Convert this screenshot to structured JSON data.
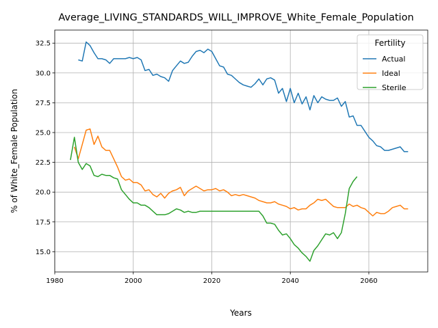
{
  "chart_data": {
    "type": "line",
    "title": "Average_LIVING_STANDARDS_WILL_IMPROVE_White_Female_Population",
    "xlabel": "Years",
    "ylabel": "% of White_Female Population",
    "xlim": [
      1980,
      2075
    ],
    "ylim": [
      13.3,
      33.6
    ],
    "xticks": [
      "1980",
      "2000",
      "2020",
      "2040",
      "2060"
    ],
    "yticks": [
      "15.0",
      "17.5",
      "20.0",
      "22.5",
      "25.0",
      "27.5",
      "30.0",
      "32.5"
    ],
    "grid": true,
    "legend": {
      "title": "Fertility",
      "position": "top-right"
    },
    "series": [
      {
        "name": "Actual",
        "color": "#1f77b4",
        "x": [
          1986,
          1987,
          1988,
          1989,
          1990,
          1991,
          1992,
          1993,
          1994,
          1995,
          1996,
          1997,
          1998,
          1999,
          2000,
          2001,
          2002,
          2003,
          2004,
          2005,
          2006,
          2007,
          2008,
          2009,
          2010,
          2011,
          2012,
          2013,
          2014,
          2015,
          2016,
          2017,
          2018,
          2019,
          2020,
          2021,
          2022,
          2023,
          2024,
          2025,
          2026,
          2027,
          2028,
          2029,
          2030,
          2031,
          2032,
          2033,
          2034,
          2035,
          2036,
          2037,
          2038,
          2039,
          2040,
          2041,
          2042,
          2043,
          2044,
          2045,
          2046,
          2047,
          2048,
          2049,
          2050,
          2051,
          2052,
          2053,
          2054,
          2055,
          2056,
          2057,
          2058,
          2059,
          2060,
          2061,
          2062,
          2063,
          2064,
          2065,
          2066,
          2067,
          2068,
          2069,
          2070
        ],
        "values": [
          31.1,
          31.0,
          32.6,
          32.3,
          31.7,
          31.2,
          31.2,
          31.1,
          30.8,
          31.2,
          31.2,
          31.2,
          31.2,
          31.3,
          31.2,
          31.3,
          31.1,
          30.2,
          30.3,
          29.8,
          29.9,
          29.7,
          29.6,
          29.3,
          30.2,
          30.6,
          31.0,
          30.8,
          30.9,
          31.4,
          31.8,
          31.9,
          31.7,
          32.0,
          31.8,
          31.2,
          30.6,
          30.5,
          29.9,
          29.8,
          29.5,
          29.2,
          29.0,
          28.9,
          28.8,
          29.1,
          29.5,
          29.0,
          29.5,
          29.6,
          29.4,
          28.3,
          28.7,
          27.6,
          28.7,
          27.5,
          28.3,
          27.4,
          28.0,
          26.9,
          28.1,
          27.5,
          28.0,
          27.8,
          27.7,
          27.7,
          27.9,
          27.2,
          27.6,
          26.3,
          26.4,
          25.6,
          25.6,
          25.1,
          24.6,
          24.3,
          23.9,
          23.8,
          23.5,
          23.5,
          23.6,
          23.7,
          23.8,
          23.4,
          23.4
        ]
      },
      {
        "name": "Ideal",
        "color": "#ff7f0e",
        "x": [
          1985,
          1986,
          1987,
          1988,
          1989,
          1990,
          1991,
          1992,
          1993,
          1994,
          1995,
          1996,
          1997,
          1998,
          1999,
          2000,
          2001,
          2002,
          2003,
          2004,
          2005,
          2006,
          2007,
          2008,
          2009,
          2010,
          2011,
          2012,
          2013,
          2014,
          2015,
          2016,
          2017,
          2018,
          2019,
          2020,
          2021,
          2022,
          2023,
          2024,
          2025,
          2026,
          2027,
          2028,
          2029,
          2030,
          2031,
          2032,
          2033,
          2034,
          2035,
          2036,
          2037,
          2038,
          2039,
          2040,
          2041,
          2042,
          2043,
          2044,
          2045,
          2046,
          2047,
          2048,
          2049,
          2050,
          2051,
          2052,
          2053,
          2054,
          2055,
          2056,
          2057,
          2058,
          2059,
          2060,
          2061,
          2062,
          2063,
          2064,
          2065,
          2066,
          2067,
          2068,
          2069,
          2070
        ],
        "values": [
          23.8,
          22.8,
          24.0,
          25.2,
          25.3,
          24.0,
          24.7,
          23.8,
          23.5,
          23.5,
          22.8,
          22.1,
          21.3,
          21.0,
          21.1,
          20.8,
          20.8,
          20.6,
          20.1,
          20.2,
          19.8,
          19.6,
          19.9,
          19.5,
          19.9,
          20.1,
          20.2,
          20.4,
          19.7,
          20.1,
          20.3,
          20.5,
          20.3,
          20.1,
          20.2,
          20.2,
          20.3,
          20.1,
          20.2,
          20.0,
          19.7,
          19.8,
          19.7,
          19.8,
          19.7,
          19.6,
          19.5,
          19.3,
          19.2,
          19.1,
          19.1,
          19.2,
          19.0,
          18.9,
          18.8,
          18.6,
          18.7,
          18.5,
          18.6,
          18.6,
          18.9,
          19.1,
          19.4,
          19.3,
          19.4,
          19.1,
          18.8,
          18.7,
          18.7,
          18.7,
          19.0,
          18.8,
          18.9,
          18.7,
          18.6,
          18.3,
          18.0,
          18.3,
          18.2,
          18.2,
          18.4,
          18.7,
          18.8,
          18.9,
          18.6,
          18.6
        ]
      },
      {
        "name": "Sterile",
        "color": "#2ca02c",
        "x": [
          1984,
          1985,
          1986,
          1987,
          1988,
          1989,
          1990,
          1991,
          1992,
          1993,
          1994,
          1995,
          1996,
          1997,
          1998,
          1999,
          2000,
          2001,
          2002,
          2003,
          2004,
          2005,
          2006,
          2007,
          2008,
          2009,
          2010,
          2011,
          2012,
          2013,
          2014,
          2015,
          2016,
          2017,
          2018,
          2019,
          2020,
          2021,
          2022,
          2023,
          2024,
          2025,
          2026,
          2027,
          2028,
          2029,
          2030,
          2031,
          2032,
          2033,
          2034,
          2035,
          2036,
          2037,
          2038,
          2039,
          2040,
          2041,
          2042,
          2043,
          2044,
          2045,
          2046,
          2047,
          2048,
          2049,
          2050,
          2051,
          2052,
          2053,
          2054,
          2055,
          2056,
          2057
        ],
        "values": [
          22.7,
          24.6,
          22.5,
          21.9,
          22.4,
          22.2,
          21.4,
          21.3,
          21.5,
          21.4,
          21.4,
          21.2,
          21.1,
          20.2,
          19.8,
          19.4,
          19.1,
          19.1,
          18.9,
          18.9,
          18.7,
          18.4,
          18.1,
          18.1,
          18.1,
          18.2,
          18.4,
          18.6,
          18.5,
          18.3,
          18.4,
          18.3,
          18.3,
          18.4,
          18.4,
          18.4,
          18.4,
          18.4,
          18.4,
          18.4,
          18.4,
          18.4,
          18.4,
          18.4,
          18.4,
          18.4,
          18.4,
          18.4,
          18.4,
          18.0,
          17.4,
          17.4,
          17.3,
          16.8,
          16.4,
          16.5,
          16.1,
          15.6,
          15.3,
          14.9,
          14.6,
          14.2,
          15.1,
          15.5,
          16.0,
          16.5,
          16.4,
          16.6,
          16.1,
          16.6,
          18.2,
          20.3,
          20.9,
          21.3
        ]
      }
    ]
  }
}
